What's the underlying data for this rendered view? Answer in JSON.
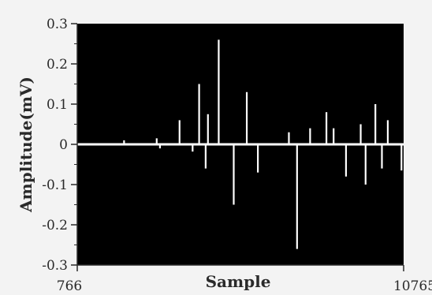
{
  "chart_data": {
    "type": "line",
    "title": "",
    "xlabel": "Sample",
    "ylabel": "Amplitude(mV)",
    "xlim": [
      766,
      10765
    ],
    "ylim": [
      -0.3,
      0.3
    ],
    "x_tick_labels": [
      "766",
      "10765"
    ],
    "y_ticks": [
      0.3,
      0.2,
      0.1,
      0,
      -0.1,
      -0.2,
      -0.3
    ],
    "y_tick_labels": [
      "0.3",
      "0.2",
      "0.1",
      "0",
      "-0.1",
      "-0.2",
      "-0.3"
    ],
    "grid": false,
    "legend": "none",
    "plot_background": "#000000",
    "line_color": "#ffffff",
    "series": [
      {
        "x": [
          766,
          2200,
          3200,
          3300,
          3900,
          4300,
          4500,
          4700,
          4770,
          5100,
          5560,
          5960,
          6300,
          7250,
          7500,
          7900,
          8400,
          8620,
          9000,
          9450,
          9600,
          9900,
          10100,
          10280,
          10700
        ],
        "y": [
          0,
          0.01,
          0.015,
          -0.01,
          0.06,
          -0.018,
          0.15,
          -0.06,
          0.075,
          0.26,
          -0.15,
          0.13,
          -0.07,
          0.03,
          -0.26,
          0.04,
          0.08,
          0.04,
          -0.08,
          0.05,
          -0.1,
          0.1,
          -0.06,
          0.06,
          -0.065
        ]
      }
    ]
  }
}
